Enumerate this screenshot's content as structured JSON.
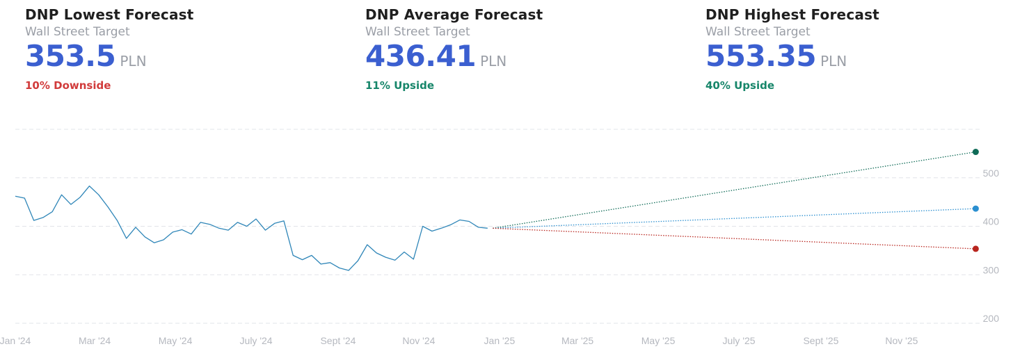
{
  "cards": [
    {
      "title": "DNP Lowest Forecast",
      "subtitle": "Wall Street Target",
      "value": "353.5",
      "unit": "PLN",
      "change": "10% Downside",
      "direction": "down"
    },
    {
      "title": "DNP Average Forecast",
      "subtitle": "Wall Street Target",
      "value": "436.41",
      "unit": "PLN",
      "change": "11% Upside",
      "direction": "up"
    },
    {
      "title": "DNP Highest Forecast",
      "subtitle": "Wall Street Target",
      "value": "553.35",
      "unit": "PLN",
      "change": "40% Upside",
      "direction": "up"
    }
  ],
  "chart_data": {
    "type": "line",
    "x_ticks": [
      "Jan '24",
      "Mar '24",
      "May '24",
      "July '24",
      "Sept '24",
      "Nov '24",
      "Jan '25",
      "Mar '25",
      "May '25",
      "July '25",
      "Sept '25",
      "Nov '25"
    ],
    "y_ticks": [
      200,
      300,
      400,
      500
    ],
    "ylim": [
      200,
      600
    ],
    "grid": true,
    "colors": {
      "history": "#2f86b8",
      "high": "#0f6b57",
      "average": "#2b8fd0",
      "low": "#b8251e",
      "grid": "#e2e4e8",
      "tick": "#b5b8bf"
    },
    "history": {
      "x": [
        "2024-01-01",
        "2024-01-08",
        "2024-01-15",
        "2024-01-22",
        "2024-01-29",
        "2024-02-05",
        "2024-02-12",
        "2024-02-19",
        "2024-02-26",
        "2024-03-04",
        "2024-03-11",
        "2024-03-18",
        "2024-03-25",
        "2024-04-01",
        "2024-04-08",
        "2024-04-15",
        "2024-04-22",
        "2024-04-29",
        "2024-05-06",
        "2024-05-13",
        "2024-05-20",
        "2024-05-27",
        "2024-06-03",
        "2024-06-10",
        "2024-06-17",
        "2024-06-24",
        "2024-07-01",
        "2024-07-08",
        "2024-07-15",
        "2024-07-22",
        "2024-07-29",
        "2024-08-05",
        "2024-08-12",
        "2024-08-19",
        "2024-08-26",
        "2024-09-02",
        "2024-09-09",
        "2024-09-16",
        "2024-09-23",
        "2024-09-30",
        "2024-10-07",
        "2024-10-14",
        "2024-10-21",
        "2024-10-28",
        "2024-11-04",
        "2024-11-11",
        "2024-11-18",
        "2024-11-25",
        "2024-12-02",
        "2024-12-09",
        "2024-12-16",
        "2024-12-23"
      ],
      "values": [
        462,
        458,
        412,
        418,
        430,
        465,
        445,
        460,
        483,
        465,
        440,
        412,
        375,
        398,
        378,
        366,
        372,
        388,
        393,
        384,
        408,
        404,
        396,
        392,
        408,
        400,
        415,
        392,
        406,
        411,
        340,
        331,
        340,
        322,
        325,
        314,
        309,
        329,
        362,
        345,
        336,
        330,
        347,
        332,
        400,
        390,
        396,
        403,
        413,
        410,
        398,
        396
      ]
    },
    "forecast": {
      "x": [
        "2024-12-27",
        "2025-12-27"
      ],
      "start": 396,
      "high": 553.35,
      "average": 436.41,
      "low": 353.5
    }
  }
}
